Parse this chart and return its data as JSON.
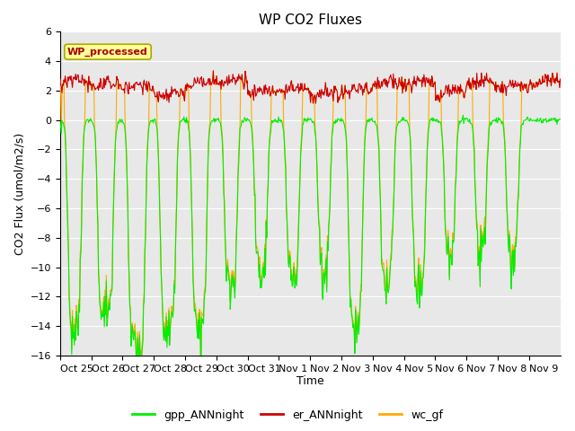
{
  "title": "WP CO2 Fluxes",
  "xlabel": "Time",
  "ylabel": "CO2 Flux (umol/m2/s)",
  "ylim": [
    -16,
    6
  ],
  "yticks": [
    6,
    4,
    2,
    0,
    -2,
    -4,
    -6,
    -8,
    -10,
    -12,
    -14,
    -16
  ],
  "background_color": "#ffffff",
  "plot_bg_color": "#e8e8e8",
  "grid_color": "#ffffff",
  "colors": {
    "gpp": "#00ee00",
    "er": "#cc0000",
    "wc": "#ffaa00"
  },
  "legend_entries": [
    "gpp_ANNnight",
    "er_ANNnight",
    "wc_gf"
  ],
  "watermark_text": "WP_processed",
  "watermark_color": "#aa0000",
  "watermark_bg": "#ffff99",
  "watermark_edge": "#aaaa00",
  "xtick_labels": [
    "Oct 25",
    "Oct 26",
    "Oct 27",
    "Oct 28",
    "Oct 29",
    "Oct 30",
    "Oct 31",
    "Nov 1",
    "Nov 2",
    "Nov 3",
    "Nov 4",
    "Nov 5",
    "Nov 6",
    "Nov 7",
    "Nov 8",
    "Nov 9"
  ],
  "n_days": 16,
  "pts_per_day": 48
}
